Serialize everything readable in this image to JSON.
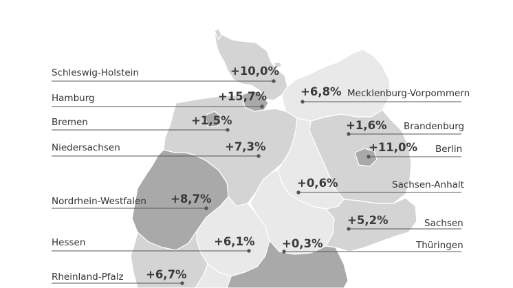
{
  "colors": {
    "light": "#e9e9e9",
    "medium": "#d4d4d4",
    "dark": "#a9a9a9",
    "line": "#555555",
    "text": "#333333"
  },
  "states": [
    {
      "id": "schleswig-holstein",
      "name": "Schleswig-Holstein",
      "value": "+10,0%",
      "side": "left"
    },
    {
      "id": "hamburg",
      "name": "Hamburg",
      "value": "+15,7%",
      "side": "left"
    },
    {
      "id": "bremen",
      "name": "Bremen",
      "value": "+1,5%",
      "side": "left"
    },
    {
      "id": "niedersachsen",
      "name": "Niedersachsen",
      "value": "+7,3%",
      "side": "left"
    },
    {
      "id": "nordrhein-westfalen",
      "name": "Nordrhein-Westfalen",
      "value": "+8,7%",
      "side": "left"
    },
    {
      "id": "hessen",
      "name": "Hessen",
      "value": "+6,1%",
      "side": "left"
    },
    {
      "id": "rheinland-pfalz",
      "name": "Rheinland-Pfalz",
      "value": "+6,7%",
      "side": "left"
    },
    {
      "id": "mecklenburg-vorpommern",
      "name": "Mecklenburg-Vorpommern",
      "value": "+6,8%",
      "side": "right"
    },
    {
      "id": "brandenburg",
      "name": "Brandenburg",
      "value": "+1,6%",
      "side": "right"
    },
    {
      "id": "berlin",
      "name": "Berlin",
      "value": "+11,0%",
      "side": "right"
    },
    {
      "id": "sachsen-anhalt",
      "name": "Sachsen-Anhalt",
      "value": "+0,6%",
      "side": "right"
    },
    {
      "id": "sachsen",
      "name": "Sachsen",
      "value": "+5,2%",
      "side": "right"
    },
    {
      "id": "thueringen",
      "name": "Thüringen",
      "value": "+0,3%",
      "side": "right"
    }
  ]
}
